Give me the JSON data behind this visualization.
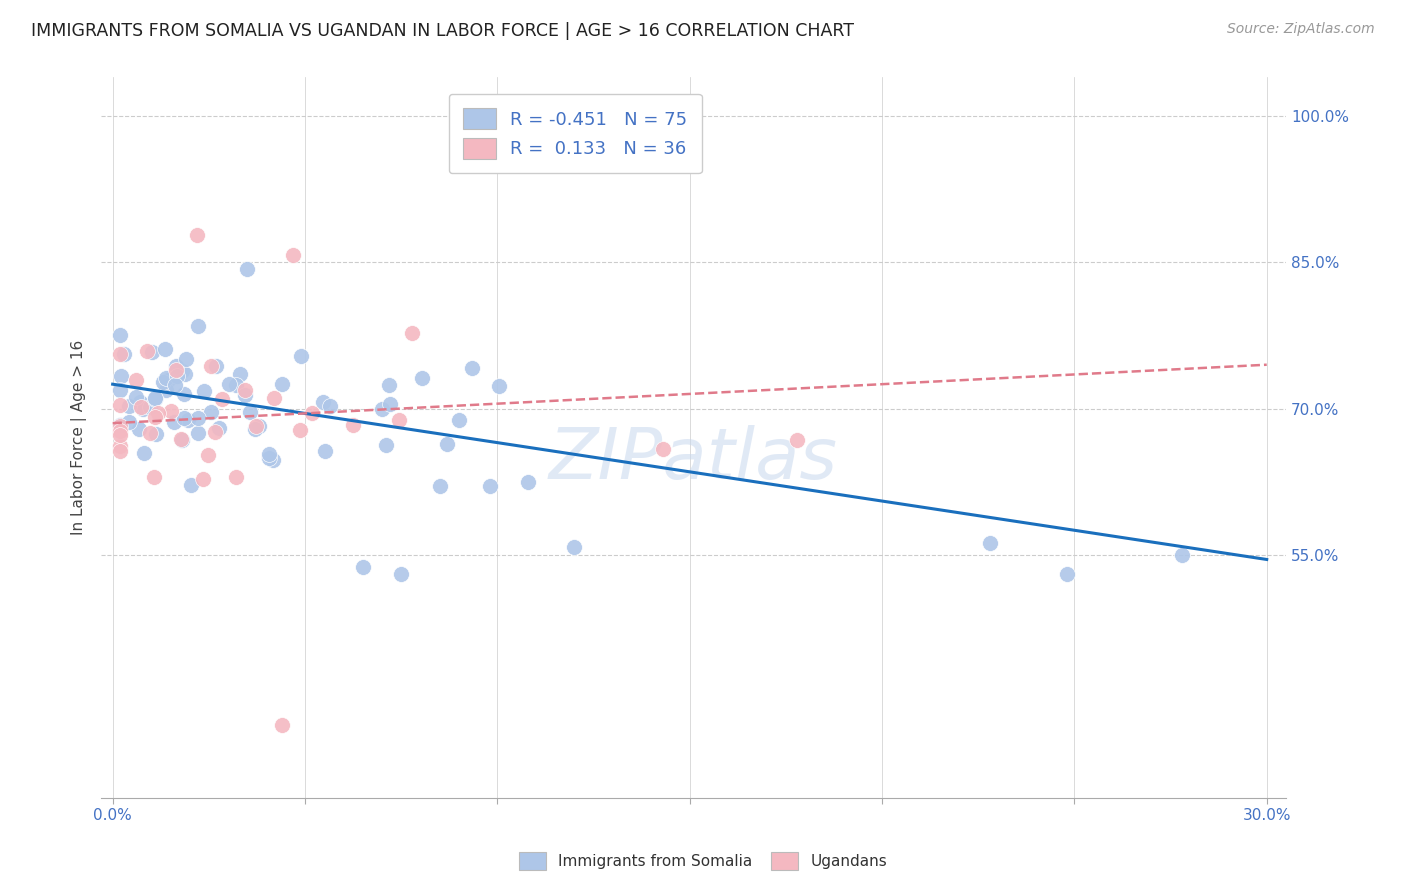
{
  "title": "IMMIGRANTS FROM SOMALIA VS UGANDAN IN LABOR FORCE | AGE > 16 CORRELATION CHART",
  "source": "Source: ZipAtlas.com",
  "ylabel": "In Labor Force | Age > 16",
  "xlim": [
    -0.003,
    0.305
  ],
  "ylim": [
    0.3,
    1.04
  ],
  "yticks": [
    0.55,
    0.7,
    0.85,
    1.0
  ],
  "ytick_labels": [
    "55.0%",
    "70.0%",
    "85.0%",
    "100.0%"
  ],
  "xticks": [
    0.0,
    0.05,
    0.1,
    0.15,
    0.2,
    0.25,
    0.3
  ],
  "xtick_labels": [
    "0.0%",
    "",
    "",
    "",
    "",
    "",
    "30.0%"
  ],
  "legend1": "R = -0.451   N = 75",
  "legend2": "R =  0.133   N = 36",
  "somalia_color": "#aec6e8",
  "ugandan_color": "#f4b8c1",
  "somalia_line_color": "#1a6fbd",
  "ugandan_line_color": "#e07a8a",
  "watermark": "ZIPatlas",
  "som_line_y0": 0.725,
  "som_line_y1": 0.545,
  "uga_line_y0": 0.685,
  "uga_line_y1": 0.745
}
